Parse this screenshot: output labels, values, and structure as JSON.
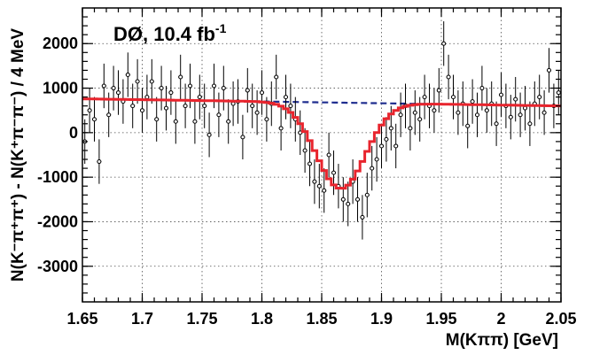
{
  "chart_data": {
    "type": "scatter",
    "title": "DØ, 10.4 fb",
    "title_sup": "-1",
    "xlabel": "M(Kππ)    [GeV]",
    "ylabel": "N(K⁻π⁺π⁺) - N(K⁺π⁻π⁻)  /  4 MeV",
    "xlim": [
      1.65,
      2.05
    ],
    "ylim": [
      -3800,
      2800
    ],
    "x_ticks": [
      "1.65",
      "1.7",
      "1.75",
      "1.8",
      "1.85",
      "1.9",
      "1.95",
      "2",
      "2.05"
    ],
    "x_tick_values": [
      1.65,
      1.7,
      1.75,
      1.8,
      1.85,
      1.9,
      1.95,
      2.0,
      2.05
    ],
    "y_ticks": [
      "2000",
      "1000",
      "0",
      "-1000",
      "-2000",
      "-3000"
    ],
    "y_tick_values": [
      2000,
      1000,
      0,
      -1000,
      -2000,
      -3000
    ],
    "grid": true,
    "colors": {
      "fit": "#e8242d",
      "background": "#1f2d8f",
      "points": "#000000"
    },
    "series": [
      {
        "kind": "data_points",
        "x": [
          1.652,
          1.656,
          1.66,
          1.664,
          1.668,
          1.672,
          1.676,
          1.68,
          1.684,
          1.688,
          1.692,
          1.696,
          1.7,
          1.704,
          1.708,
          1.712,
          1.716,
          1.72,
          1.724,
          1.728,
          1.732,
          1.736,
          1.74,
          1.744,
          1.748,
          1.752,
          1.756,
          1.76,
          1.764,
          1.768,
          1.772,
          1.776,
          1.78,
          1.784,
          1.788,
          1.792,
          1.796,
          1.8,
          1.804,
          1.808,
          1.812,
          1.816,
          1.82,
          1.824,
          1.828,
          1.832,
          1.836,
          1.84,
          1.844,
          1.848,
          1.852,
          1.856,
          1.86,
          1.864,
          1.868,
          1.872,
          1.876,
          1.88,
          1.884,
          1.888,
          1.892,
          1.896,
          1.9,
          1.904,
          1.908,
          1.912,
          1.916,
          1.92,
          1.924,
          1.928,
          1.932,
          1.936,
          1.94,
          1.944,
          1.948,
          1.952,
          1.956,
          1.96,
          1.964,
          1.968,
          1.972,
          1.976,
          1.98,
          1.984,
          1.988,
          1.992,
          1.996,
          2.0,
          2.004,
          2.008,
          2.012,
          2.016,
          2.02,
          2.024,
          2.028,
          2.032,
          2.036,
          2.04,
          2.044,
          2.048
        ],
        "y": [
          -200,
          500,
          300,
          -650,
          1050,
          400,
          1000,
          900,
          700,
          1300,
          600,
          1150,
          500,
          800,
          1150,
          300,
          1000,
          550,
          900,
          250,
          1250,
          600,
          1050,
          250,
          800,
          600,
          -50,
          1050,
          400,
          1000,
          250,
          650,
          700,
          -100,
          950,
          600,
          450,
          900,
          300,
          650,
          1250,
          100,
          800,
          600,
          300,
          0,
          -400,
          -700,
          -1100,
          -1200,
          -1300,
          -500,
          -900,
          -1200,
          -1500,
          -1600,
          -1100,
          -1500,
          -1900,
          -1400,
          -800,
          -600,
          -300,
          -150,
          100,
          -300,
          400,
          600,
          100,
          450,
          300,
          800,
          600,
          500,
          950,
          2000,
          1250,
          800,
          450,
          650,
          150,
          700,
          400,
          1000,
          500,
          650,
          200,
          850,
          600,
          350,
          750,
          400,
          550,
          200,
          650,
          800,
          450,
          1400,
          600,
          900
        ],
        "err": 500
      },
      {
        "kind": "fit",
        "description_ref": "red"
      },
      {
        "kind": "background",
        "description_ref": "blue_dashed"
      }
    ],
    "fit_model": {
      "bkg_start": 760,
      "bkg_slope_per_gev": -400,
      "peak_mean": 1.866,
      "peak_sigma": 0.0205,
      "peak_amplitude": -1930
    }
  }
}
